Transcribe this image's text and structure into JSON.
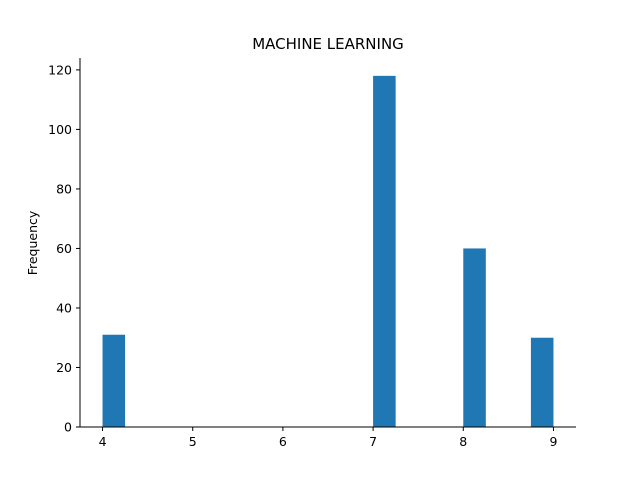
{
  "chart_data": {
    "type": "bar",
    "title": "MACHINE LEARNING",
    "xlabel": "",
    "ylabel": "Frequency",
    "bins": [
      {
        "start": 4.0,
        "end": 4.25,
        "count": 31
      },
      {
        "start": 4.25,
        "end": 4.5,
        "count": 0
      },
      {
        "start": 4.5,
        "end": 4.75,
        "count": 0
      },
      {
        "start": 4.75,
        "end": 5.0,
        "count": 0
      },
      {
        "start": 5.0,
        "end": 5.25,
        "count": 0
      },
      {
        "start": 5.25,
        "end": 5.5,
        "count": 0
      },
      {
        "start": 5.5,
        "end": 5.75,
        "count": 0
      },
      {
        "start": 5.75,
        "end": 6.0,
        "count": 0
      },
      {
        "start": 6.0,
        "end": 6.25,
        "count": 0
      },
      {
        "start": 6.25,
        "end": 6.5,
        "count": 0
      },
      {
        "start": 6.5,
        "end": 6.75,
        "count": 0
      },
      {
        "start": 6.75,
        "end": 7.0,
        "count": 0
      },
      {
        "start": 7.0,
        "end": 7.25,
        "count": 118
      },
      {
        "start": 7.25,
        "end": 7.5,
        "count": 0
      },
      {
        "start": 7.5,
        "end": 7.75,
        "count": 0
      },
      {
        "start": 7.75,
        "end": 8.0,
        "count": 0
      },
      {
        "start": 8.0,
        "end": 8.25,
        "count": 60
      },
      {
        "start": 8.25,
        "end": 8.5,
        "count": 0
      },
      {
        "start": 8.5,
        "end": 8.75,
        "count": 0
      },
      {
        "start": 8.75,
        "end": 9.0,
        "count": 30
      }
    ],
    "xlim": [
      3.75,
      9.25
    ],
    "ylim": [
      0,
      124
    ],
    "xticks": [
      4,
      5,
      6,
      7,
      8,
      9
    ],
    "yticks": [
      0,
      20,
      40,
      60,
      80,
      100,
      120
    ],
    "bar_color": "#1f77b4",
    "grid": false,
    "spines": [
      "left",
      "bottom"
    ]
  }
}
